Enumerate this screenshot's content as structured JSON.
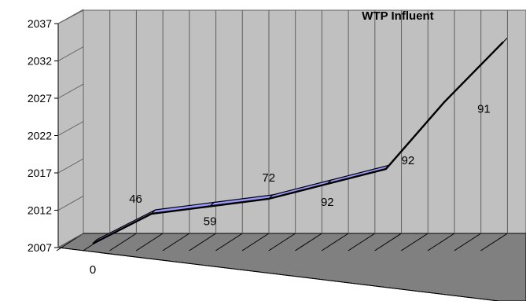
{
  "chart_data": {
    "type": "line",
    "title": "WTP Influent",
    "xlabel": "",
    "ylabel": "",
    "ylim": [
      2007,
      2037
    ],
    "ytick_step": 5,
    "yticks": [
      "2007",
      "2012",
      "2017",
      "2022",
      "2027",
      "2032",
      "2037"
    ],
    "grid": true,
    "three_d": true,
    "series": [
      {
        "name": "",
        "color": "#9999ff",
        "points": [
          {
            "label": "0",
            "y": 2007
          },
          {
            "label": "46",
            "y": 2011
          },
          {
            "label": "59",
            "y": 2012
          },
          {
            "label": "72",
            "y": 2013
          },
          {
            "label": "92",
            "y": 2015
          },
          {
            "label": "92",
            "y": 2017
          },
          {
            "label": "91",
            "y": 2026
          },
          {
            "label": "91",
            "y": 2034
          }
        ]
      }
    ],
    "colors": {
      "back_wall": "#c0c0c0",
      "floor": "#808080",
      "grid_line": "#606060",
      "axis_line": "#000000",
      "line_top": "#9999ff"
    }
  }
}
